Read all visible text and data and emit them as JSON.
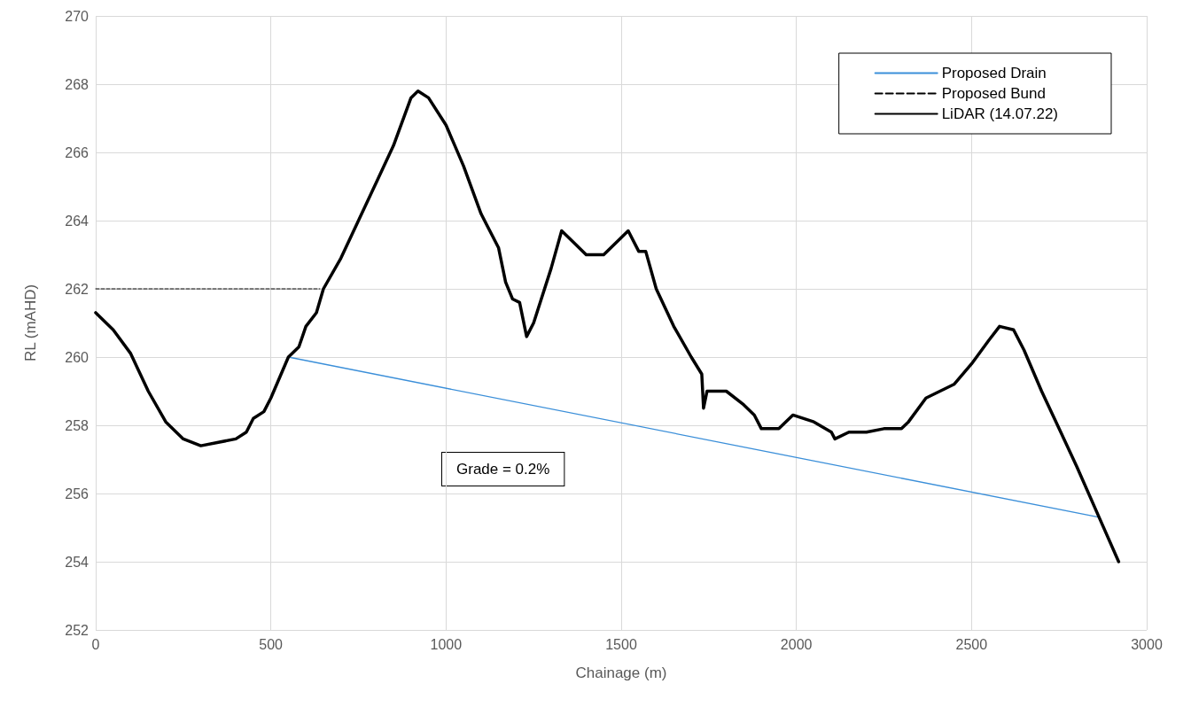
{
  "chart_data": {
    "type": "line",
    "xlabel": "Chainage (m)",
    "ylabel": "RL (mAHD)",
    "xlim": [
      0,
      3000
    ],
    "xticks": [
      0,
      500,
      1000,
      1500,
      2000,
      2500,
      3000
    ],
    "ylim": [
      252,
      270
    ],
    "yticks": [
      252,
      254,
      256,
      258,
      260,
      262,
      264,
      266,
      268,
      270
    ],
    "grid": true,
    "legend": "top right",
    "marker": "none",
    "annotations": [
      "Grade = 0.2%"
    ],
    "series": [
      {
        "name": "Proposed Drain",
        "color": "#3b8fd9",
        "line_style": "solid",
        "x": [
          550,
          2865
        ],
        "values": [
          260.0,
          255.3
        ]
      },
      {
        "name": "Proposed Bund",
        "color": "#000000",
        "line_style": "dashed",
        "x": [
          0,
          640
        ],
        "values": [
          262.0,
          262.0
        ]
      },
      {
        "name": "LiDAR (14.07.22)",
        "color": "#000000",
        "line_style": "solid",
        "x": [
          0,
          50,
          100,
          150,
          200,
          250,
          300,
          350,
          400,
          430,
          450,
          480,
          500,
          550,
          580,
          600,
          630,
          650,
          700,
          750,
          800,
          850,
          900,
          920,
          950,
          1000,
          1050,
          1100,
          1150,
          1170,
          1190,
          1210,
          1230,
          1250,
          1300,
          1330,
          1360,
          1400,
          1450,
          1500,
          1520,
          1550,
          1570,
          1600,
          1650,
          1700,
          1730,
          1735,
          1745,
          1800,
          1850,
          1880,
          1900,
          1950,
          1990,
          2050,
          2100,
          2110,
          2150,
          2200,
          2250,
          2300,
          2320,
          2370,
          2450,
          2500,
          2550,
          2580,
          2620,
          2650,
          2700,
          2750,
          2800,
          2860,
          2920
        ],
        "values": [
          261.3,
          260.8,
          260.1,
          259.0,
          258.1,
          257.6,
          257.4,
          257.5,
          257.6,
          257.8,
          258.2,
          258.4,
          258.8,
          260.0,
          260.3,
          260.9,
          261.3,
          262.0,
          262.9,
          264.0,
          265.1,
          266.2,
          267.6,
          267.8,
          267.6,
          266.8,
          265.6,
          264.2,
          263.2,
          262.2,
          261.7,
          261.6,
          260.6,
          261.0,
          262.6,
          263.7,
          263.4,
          263.0,
          263.0,
          263.5,
          263.7,
          263.1,
          263.1,
          262.0,
          260.9,
          260.0,
          259.5,
          258.5,
          259.0,
          259.0,
          258.6,
          258.3,
          257.9,
          257.9,
          258.3,
          258.1,
          257.8,
          257.6,
          257.8,
          257.8,
          257.9,
          257.9,
          258.1,
          258.8,
          259.2,
          259.8,
          260.5,
          260.9,
          260.8,
          260.2,
          259.0,
          257.9,
          256.8,
          255.4,
          254.0
        ]
      }
    ]
  }
}
